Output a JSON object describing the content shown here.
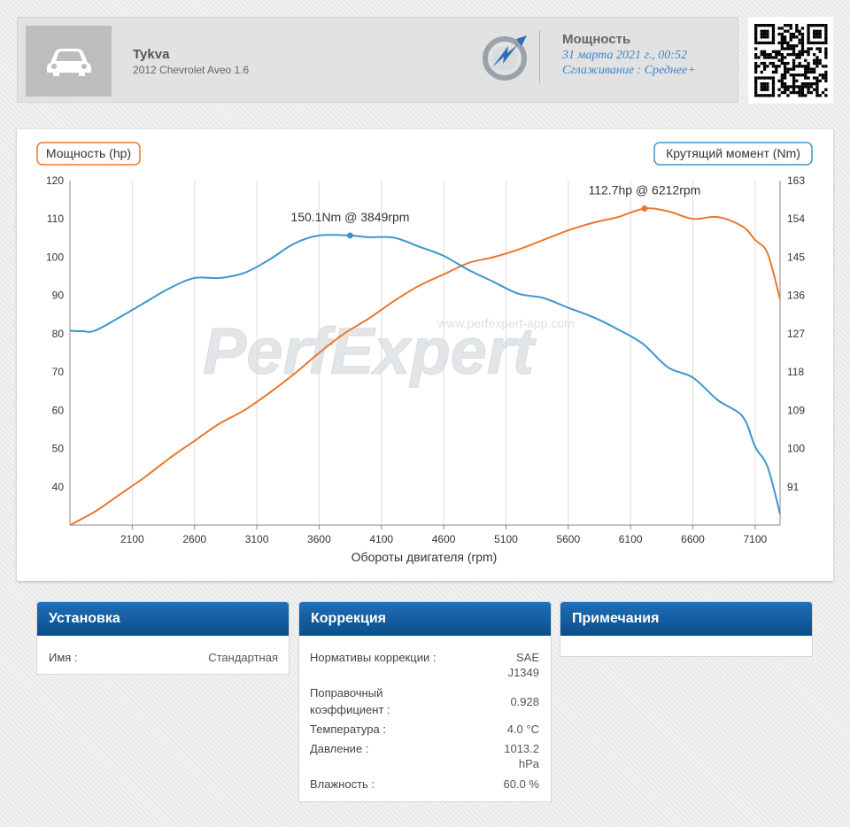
{
  "header": {
    "car_name": "Tykva",
    "car_model": "2012 Chevrolet Aveo 1.6",
    "mode_title": "Мощность",
    "mode_date": "31 марта 2021 г., 00:52",
    "mode_smoothing": "Сглаживание : Среднее+"
  },
  "icons": {
    "car": "car-icon",
    "logo": "perfexpert-logo-icon",
    "qr": "qr-code-icon"
  },
  "colors": {
    "power": "#e8782e",
    "torque": "#3d97c9",
    "panel_header": "#1662a8"
  },
  "chart_data": {
    "type": "line",
    "left_axis_label": "Мощность (hp)",
    "right_axis_label": "Крутящий момент (Nm)",
    "xlabel": "Обороты двигателя (rpm)",
    "watermark": "PerfExpert",
    "watermark_url": "www.perfexpert-app.com",
    "xlim": [
      1600,
      7300
    ],
    "ylim_left": [
      30,
      120
    ],
    "ylim_right": [
      82,
      163
    ],
    "x_ticks": [
      2100,
      2600,
      3100,
      3600,
      4100,
      4600,
      5100,
      5600,
      6100,
      6600,
      7100
    ],
    "y_ticks_left": [
      40,
      50,
      60,
      70,
      80,
      90,
      100,
      110,
      120
    ],
    "y_ticks_right": [
      91,
      100,
      109,
      118,
      127,
      136,
      145,
      154,
      163
    ],
    "grid": "vertical",
    "series": [
      {
        "name": "Мощность (hp)",
        "axis": "left",
        "x": [
          1600,
          1800,
          2000,
          2200,
          2400,
          2600,
          2800,
          3000,
          3200,
          3400,
          3600,
          3800,
          4000,
          4200,
          4400,
          4600,
          4800,
          5000,
          5200,
          5400,
          5600,
          5800,
          6000,
          6212,
          6400,
          6600,
          6800,
          7000,
          7100,
          7200,
          7300
        ],
        "values": [
          30,
          33.5,
          38,
          42.5,
          47.5,
          52,
          56.5,
          60,
          64.5,
          69.5,
          75,
          80,
          84,
          88.5,
          92.5,
          95.5,
          98.5,
          100,
          102,
          104.5,
          107,
          109,
          110.5,
          112.7,
          112,
          110,
          110.5,
          108,
          104.5,
          101,
          89
        ]
      },
      {
        "name": "Крутящий момент (Nm)",
        "axis": "right",
        "x": [
          1600,
          1700,
          1800,
          2000,
          2200,
          2400,
          2600,
          2800,
          3000,
          3200,
          3400,
          3600,
          3849,
          4000,
          4200,
          4400,
          4600,
          4800,
          5000,
          5200,
          5400,
          5600,
          5800,
          6000,
          6200,
          6400,
          6600,
          6800,
          7000,
          7100,
          7200,
          7300
        ],
        "values": [
          127.7,
          127.6,
          127.7,
          130.9,
          134.3,
          137.7,
          140.1,
          140.1,
          141.3,
          144.4,
          148.2,
          150.1,
          150.1,
          149.7,
          149.6,
          147.5,
          145.3,
          142.0,
          139.2,
          136.4,
          135.4,
          133.1,
          130.9,
          128.0,
          124.6,
          119.1,
          116.7,
          111.4,
          107.5,
          100.4,
          95.7,
          84.6
        ]
      }
    ],
    "annotations": [
      {
        "text": "150.1Nm @ 3849rpm",
        "x": 3849,
        "y": 150.1,
        "axis": "right"
      },
      {
        "text": "112.7hp @ 6212rpm",
        "x": 6212,
        "y": 112.7,
        "axis": "left"
      }
    ]
  },
  "setup_panel": {
    "title": "Установка",
    "rows": [
      {
        "label": "Имя :",
        "value": "Стандартная"
      }
    ]
  },
  "correction_panel": {
    "title": "Коррекция",
    "standard_label": "Нормативы коррекции :",
    "standard_value_1": "SAE",
    "standard_value_2": "J1349",
    "factor_label_1": "Поправочный",
    "factor_label_2": "коэффициент :",
    "factor_value": "0.928",
    "temp_label": "Температура :",
    "temp_value": "4.0 °C",
    "pressure_label": "Давление :",
    "pressure_value_1": "1013.2",
    "pressure_value_2": "hPa",
    "humidity_label": "Влажность :",
    "humidity_value": "60.0 %"
  },
  "notes_panel": {
    "title": "Примечания"
  }
}
